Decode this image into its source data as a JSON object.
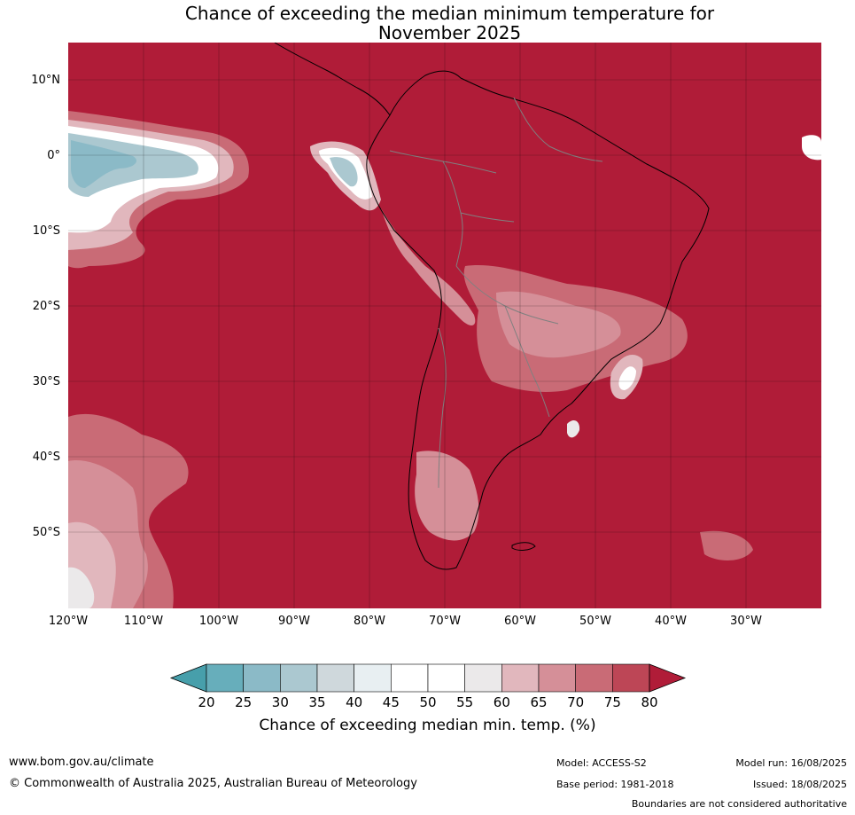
{
  "title_line1": "Chance of exceeding the median minimum temperature for",
  "title_line2": "November 2025",
  "lat_labels": [
    "10°N",
    "0°",
    "10°S",
    "20°S",
    "30°S",
    "40°S",
    "50°S"
  ],
  "lon_labels": [
    "120°W",
    "110°W",
    "100°W",
    "90°W",
    "80°W",
    "70°W",
    "60°W",
    "50°W",
    "40°W",
    "30°W"
  ],
  "colorbar": {
    "ticks": [
      "20",
      "25",
      "30",
      "35",
      "40",
      "45",
      "50",
      "55",
      "60",
      "65",
      "70",
      "75",
      "80"
    ],
    "colors": [
      "#67aebb",
      "#8bbac7",
      "#abc8d0",
      "#cfd8dc",
      "#e8eff2",
      "#ffffff",
      "#ffffff",
      "#ebe9ea",
      "#e1b7bd",
      "#d58f98",
      "#c96b76",
      "#bd4656",
      "#b01c38"
    ],
    "under_color": "#479fab",
    "over_color": "#b01c38",
    "label": "Chance of exceeding median min. temp. (%)"
  },
  "colors": {
    "dominant_fill": "#b01c38",
    "ocean_high": "#b01c38",
    "land_border": "#000000",
    "country_border": "#808080"
  },
  "footer": {
    "website": "www.bom.gov.au/climate",
    "copyright": "© Commonwealth of Australia 2025, Australian Bureau of Meteorology",
    "model": "Model: ACCESS-S2",
    "base_period": "Base period: 1981-2018",
    "model_run": "Model run: 16/08/2025",
    "issued": "Issued: 18/08/2025",
    "disclaimer": "Boundaries are not considered authoritative"
  }
}
